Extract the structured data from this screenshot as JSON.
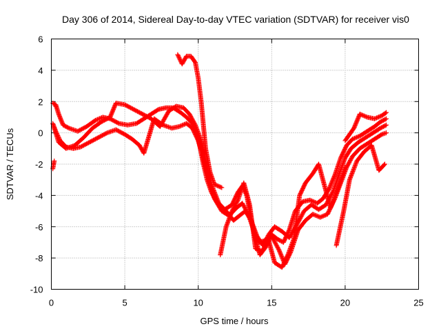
{
  "chart_data": {
    "type": "scatter",
    "title": "Day 306 of 2014, Sidereal Day-to-day VTEC variation (SDTVAR) for receiver vis0",
    "xlabel": "GPS time / hours",
    "ylabel": "SDTVAR / TECUs",
    "xlim": [
      0,
      25
    ],
    "ylim": [
      -10,
      6
    ],
    "xticks": [
      0,
      5,
      10,
      15,
      20,
      25
    ],
    "yticks": [
      -10,
      -8,
      -6,
      -4,
      -2,
      0,
      2,
      4,
      6
    ],
    "xtick_labels": [
      "0",
      "5",
      "10",
      "15",
      "20",
      "25"
    ],
    "ytick_labels": [
      "-10",
      "-8",
      "-6",
      "-4",
      "-2",
      "0",
      "2",
      "4",
      "6"
    ],
    "grid": true,
    "marker": "+",
    "color": "#ff0000",
    "series": [
      {
        "points": [
          [
            0.1,
            1.9
          ],
          [
            0.3,
            1.8
          ],
          [
            0.5,
            1.2
          ],
          [
            0.8,
            0.5
          ],
          [
            1.2,
            0.3
          ],
          [
            1.8,
            0.1
          ],
          [
            2.4,
            0.4
          ],
          [
            3.0,
            0.8
          ],
          [
            3.5,
            1.0
          ],
          [
            4.0,
            0.9
          ],
          [
            4.6,
            0.6
          ],
          [
            5.2,
            0.5
          ],
          [
            5.8,
            0.6
          ],
          [
            6.3,
            0.9
          ],
          [
            6.8,
            1.2
          ],
          [
            7.3,
            1.5
          ],
          [
            7.8,
            1.6
          ],
          [
            8.3,
            1.6
          ],
          [
            8.8,
            1.3
          ],
          [
            9.2,
            1.0
          ],
          [
            9.6,
            0.6
          ],
          [
            9.9,
            0.0
          ],
          [
            10.1,
            -0.8
          ],
          [
            10.3,
            -1.8
          ],
          [
            10.6,
            -3.0
          ],
          [
            10.9,
            -3.8
          ],
          [
            11.3,
            -4.5
          ],
          [
            11.8,
            -4.9
          ],
          [
            12.3,
            -4.6
          ],
          [
            12.7,
            -3.8
          ],
          [
            13.0,
            -3.4
          ],
          [
            13.3,
            -4.0
          ],
          [
            13.6,
            -5.5
          ],
          [
            13.9,
            -6.8
          ],
          [
            14.2,
            -7.8
          ],
          [
            14.6,
            -7.3
          ],
          [
            15.0,
            -6.5
          ],
          [
            15.4,
            -6.8
          ],
          [
            15.8,
            -7.0
          ],
          [
            16.2,
            -6.2
          ],
          [
            16.6,
            -5.0
          ],
          [
            17.1,
            -4.4
          ],
          [
            17.6,
            -4.3
          ],
          [
            18.1,
            -4.5
          ],
          [
            18.5,
            -4.2
          ],
          [
            18.9,
            -3.6
          ],
          [
            19.3,
            -2.7
          ],
          [
            19.7,
            -1.6
          ],
          [
            20.1,
            -0.8
          ],
          [
            20.5,
            -0.4
          ],
          [
            21.0,
            -0.2
          ],
          [
            21.5,
            0.1
          ],
          [
            22.0,
            0.4
          ],
          [
            22.4,
            0.7
          ],
          [
            22.8,
            0.9
          ]
        ]
      },
      {
        "points": [
          [
            0.1,
            0.6
          ],
          [
            0.3,
            0.1
          ],
          [
            0.6,
            -0.5
          ],
          [
            1.0,
            -0.9
          ],
          [
            1.5,
            -1.0
          ],
          [
            2.0,
            -0.9
          ],
          [
            2.6,
            -0.6
          ],
          [
            3.2,
            -0.3
          ],
          [
            3.8,
            0.0
          ],
          [
            4.4,
            0.2
          ],
          [
            5.0,
            -0.1
          ],
          [
            5.5,
            -0.4
          ],
          [
            6.0,
            -0.8
          ],
          [
            6.3,
            -1.3
          ],
          [
            7.0,
            0.9
          ],
          [
            7.6,
            0.5
          ],
          [
            8.2,
            0.3
          ],
          [
            8.7,
            0.4
          ],
          [
            9.2,
            0.6
          ],
          [
            9.6,
            0.3
          ],
          [
            10.0,
            -0.5
          ],
          [
            10.3,
            -1.5
          ],
          [
            10.7,
            -3.0
          ],
          [
            11.1,
            -4.2
          ],
          [
            11.6,
            -5.0
          ],
          [
            12.1,
            -5.3
          ],
          [
            12.6,
            -4.8
          ],
          [
            13.0,
            -4.5
          ],
          [
            13.4,
            -5.2
          ],
          [
            13.8,
            -6.3
          ],
          [
            14.1,
            -7.0
          ],
          [
            14.5,
            -6.9
          ],
          [
            15.0,
            -6.6
          ],
          [
            15.5,
            -7.5
          ],
          [
            15.9,
            -8.4
          ],
          [
            16.3,
            -7.6
          ],
          [
            16.8,
            -6.2
          ],
          [
            17.3,
            -5.6
          ],
          [
            17.8,
            -5.2
          ],
          [
            18.3,
            -5.4
          ],
          [
            18.8,
            -5.2
          ],
          [
            19.3,
            -4.2
          ],
          [
            19.7,
            -3.2
          ],
          [
            20.1,
            -2.2
          ],
          [
            20.5,
            -1.5
          ],
          [
            21.0,
            -1.0
          ],
          [
            21.5,
            -0.7
          ],
          [
            22.0,
            -0.4
          ],
          [
            22.5,
            -0.1
          ],
          [
            22.8,
            0.0
          ]
        ]
      },
      {
        "points": [
          [
            0.2,
            0.3
          ],
          [
            0.5,
            -0.6
          ],
          [
            1.0,
            -1.0
          ],
          [
            1.6,
            -0.8
          ],
          [
            2.2,
            -0.3
          ],
          [
            2.8,
            0.3
          ],
          [
            3.4,
            0.7
          ],
          [
            4.0,
            1.0
          ],
          [
            4.4,
            1.9
          ],
          [
            5.0,
            1.8
          ],
          [
            5.6,
            1.5
          ],
          [
            6.2,
            1.2
          ],
          [
            6.8,
            0.9
          ],
          [
            7.4,
            0.4
          ],
          [
            8.0,
            1.4
          ],
          [
            8.5,
            1.7
          ],
          [
            9.0,
            1.6
          ],
          [
            9.4,
            1.2
          ],
          [
            9.8,
            0.5
          ],
          [
            10.2,
            -0.5
          ],
          [
            10.5,
            -1.8
          ],
          [
            10.9,
            -3.3
          ],
          [
            11.4,
            -4.5
          ],
          [
            11.9,
            -5.0
          ],
          [
            12.4,
            -5.6
          ],
          [
            12.8,
            -5.3
          ],
          [
            13.2,
            -5.0
          ],
          [
            13.6,
            -5.6
          ],
          [
            14.0,
            -6.6
          ],
          [
            14.4,
            -7.2
          ],
          [
            14.8,
            -6.5
          ],
          [
            15.2,
            -6.0
          ],
          [
            15.7,
            -6.3
          ],
          [
            16.2,
            -6.7
          ],
          [
            16.7,
            -5.9
          ],
          [
            17.2,
            -5.0
          ],
          [
            17.7,
            -4.6
          ],
          [
            18.2,
            -4.9
          ],
          [
            18.7,
            -4.6
          ],
          [
            19.2,
            -3.7
          ],
          [
            19.6,
            -2.6
          ],
          [
            20.0,
            -1.6
          ],
          [
            20.4,
            -1.0
          ],
          [
            20.9,
            -0.6
          ],
          [
            21.4,
            -0.3
          ],
          [
            21.9,
            0.0
          ],
          [
            22.4,
            0.3
          ],
          [
            22.8,
            0.5
          ]
        ]
      },
      {
        "points": [
          [
            8.6,
            5.0
          ],
          [
            8.9,
            4.4
          ],
          [
            9.2,
            4.9
          ],
          [
            9.5,
            4.9
          ],
          [
            9.8,
            4.5
          ],
          [
            10.0,
            3.5
          ],
          [
            10.2,
            2.0
          ],
          [
            10.5,
            -1.0
          ],
          [
            10.8,
            -2.5
          ],
          [
            11.1,
            -3.3
          ],
          [
            11.6,
            -3.5
          ],
          [
            11.5,
            -7.8
          ],
          [
            11.9,
            -6.0
          ],
          [
            12.3,
            -5.0
          ],
          [
            12.7,
            -4.3
          ],
          [
            13.1,
            -3.2
          ],
          [
            13.5,
            -4.6
          ],
          [
            13.9,
            -7.4
          ],
          [
            14.3,
            -7.6
          ],
          [
            14.8,
            -6.9
          ],
          [
            15.2,
            -8.3
          ],
          [
            15.7,
            -8.6
          ],
          [
            16.1,
            -7.8
          ],
          [
            16.5,
            -6.8
          ],
          [
            16.9,
            -4.0
          ],
          [
            17.3,
            -3.2
          ],
          [
            17.8,
            -2.6
          ],
          [
            18.2,
            -2.0
          ],
          [
            19.0,
            -4.8
          ],
          [
            19.5,
            -3.6
          ],
          [
            20.0,
            -2.2
          ],
          [
            19.4,
            -7.2
          ],
          [
            19.9,
            -5.0
          ],
          [
            20.3,
            -3.0
          ],
          [
            20.8,
            -1.8
          ],
          [
            21.3,
            -1.2
          ],
          [
            21.8,
            -0.8
          ],
          [
            22.3,
            -2.4
          ],
          [
            22.7,
            -2.0
          ],
          [
            20.0,
            -0.5
          ],
          [
            20.6,
            0.3
          ],
          [
            21.0,
            1.2
          ],
          [
            21.5,
            1.0
          ],
          [
            22.0,
            0.9
          ],
          [
            22.5,
            1.1
          ],
          [
            22.8,
            1.3
          ],
          [
            0.1,
            -2.3
          ],
          [
            0.2,
            -1.8
          ],
          [
            0.3,
            1.7
          ]
        ]
      }
    ]
  }
}
